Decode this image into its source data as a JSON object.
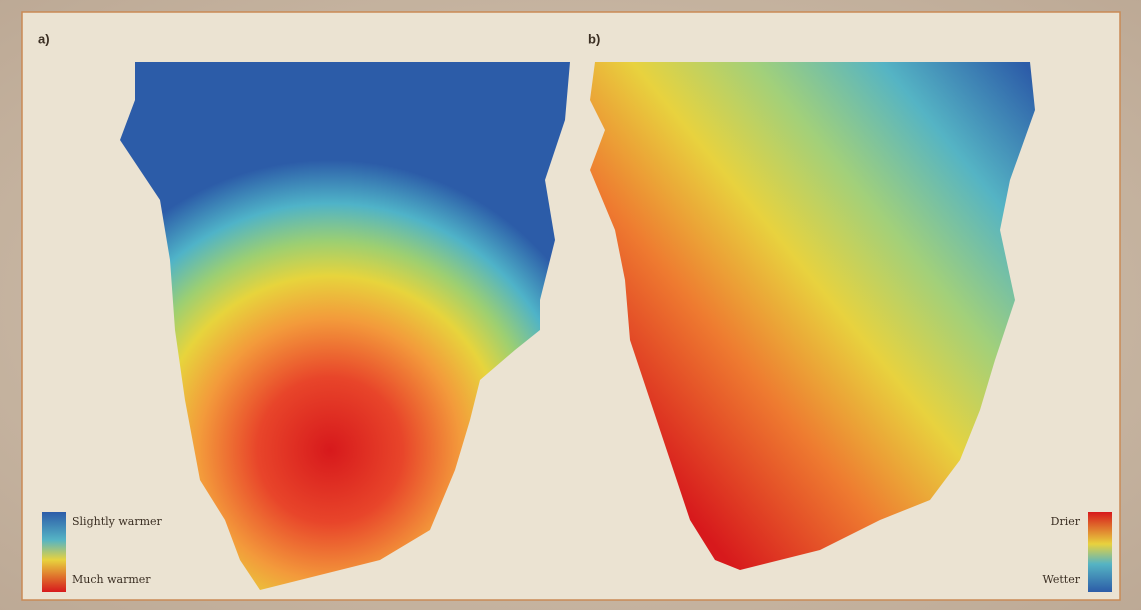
{
  "panels": [
    {
      "label": "a)",
      "legend": {
        "top": "Slightly warmer",
        "bottom": "Much warmer"
      }
    },
    {
      "label": "b)",
      "legend": {
        "top": "Drier",
        "bottom": "Wetter"
      }
    }
  ]
}
